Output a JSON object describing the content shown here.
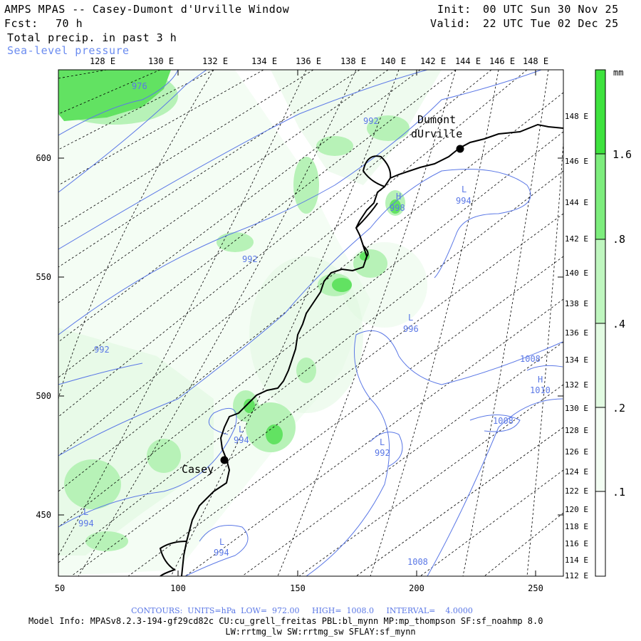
{
  "header": {
    "title": "AMPS MPAS -- Casey-Dumont d'Urville Window",
    "fcst_label": "Fcst:",
    "fcst_value": "70 h",
    "field_label": "Total precip. in past 3 h",
    "contour_label": "Sea-level pressure",
    "init_label": "Init:",
    "init_value": "00 UTC Sun 30 Nov 25",
    "valid_label": "Valid:",
    "valid_value": "22 UTC Tue 02 Dec 25"
  },
  "map": {
    "x_ticks": [
      "50",
      "100",
      "150",
      "200",
      "250"
    ],
    "y_ticks": [
      "600",
      "550",
      "500",
      "450"
    ],
    "top_lon_labels": [
      "128 E",
      "130 E",
      "132 E",
      "134 E",
      "136 E",
      "138 E",
      "140 E",
      "142 E",
      "144 E",
      "146 E",
      "148 E"
    ],
    "right_lon_labels": [
      "148 E",
      "146 E",
      "144 E",
      "142 E",
      "140 E",
      "138 E",
      "136 E",
      "134 E",
      "132 E",
      "130 E",
      "128 E",
      "126 E",
      "124 E",
      "122 E",
      "120 E",
      "118 E",
      "116 E",
      "114 E",
      "112 E"
    ],
    "stations": [
      {
        "name_line1": "Dumont",
        "name_line2": "dUrville"
      },
      {
        "name_line1": "Casey"
      }
    ],
    "pressure_labels": [
      "976",
      "992",
      "992",
      "992",
      "998",
      "994",
      "996",
      "1008",
      "1010",
      "1008",
      "994",
      "992",
      "994",
      "994",
      "1008"
    ],
    "pressure_letters": [
      "H",
      "L",
      "L",
      "H",
      "L",
      "L",
      "L",
      "L"
    ]
  },
  "colorbar": {
    "unit": "mm",
    "levels": [
      "1.6",
      ".8",
      ".4",
      ".2",
      ".1"
    ],
    "colors": {
      "high": "#3ee23e",
      "mid": "#7ded7d",
      "low": "#bff6bf",
      "pale": "#e2fbe2",
      "lowest": "#ffffff"
    }
  },
  "footer": {
    "contours": "CONTOURS:  UNITS=hPa  LOW=  972.00     HIGH=  1008.0     INTERVAL=    4.0000",
    "model_info": "Model Info: MPASv8.2.3-194-gf29cd82c CU:cu_grell_freitas PBL:bl_mynn MP:mp_thompson SF:sf_noahmp 8.0",
    "physics": "LW:rrtmg_lw SW:rrtmg_sw SFLAY:sf_mynn"
  },
  "colors": {
    "contour": "#5b78e6",
    "precip_light": "#d2f7d2",
    "precip_mid": "#8fe98f",
    "precip_heavy": "#3fd53f"
  }
}
